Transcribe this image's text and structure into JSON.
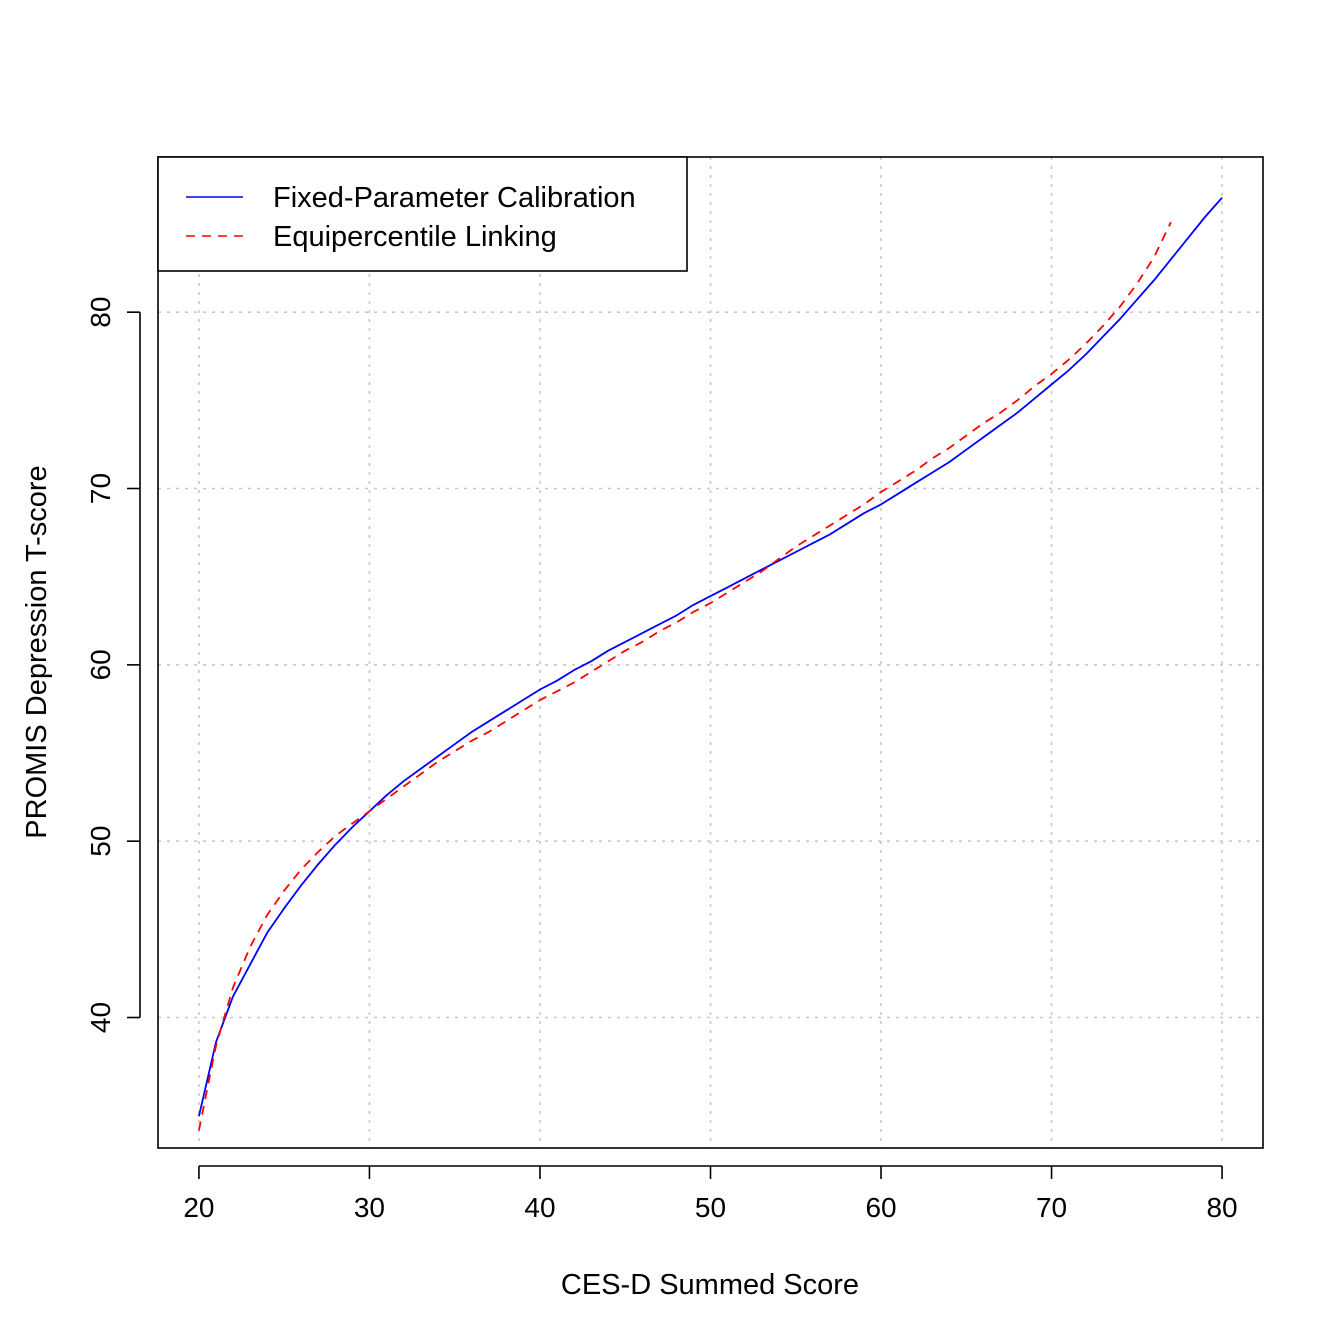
{
  "chart_data": {
    "type": "line",
    "title": "",
    "xlabel": "CES-D Summed Score",
    "ylabel": "PROMIS Depression T-score",
    "xlim": [
      17.6,
      82.4
    ],
    "ylim": [
      32.6,
      88.8
    ],
    "xticks": [
      20,
      30,
      40,
      50,
      60,
      70,
      80
    ],
    "yticks": [
      40,
      50,
      60,
      70,
      80
    ],
    "grid": true,
    "legend_position": "top-left",
    "series": [
      {
        "name": "Fixed-Parameter Calibration",
        "color": "#0000ff",
        "linestyle": "solid",
        "x": [
          20,
          21,
          22,
          23,
          24,
          25,
          26,
          27,
          28,
          29,
          30,
          31,
          32,
          33,
          34,
          35,
          36,
          37,
          38,
          39,
          40,
          41,
          42,
          43,
          44,
          45,
          46,
          47,
          48,
          49,
          50,
          51,
          52,
          53,
          54,
          55,
          56,
          57,
          58,
          59,
          60,
          61,
          62,
          63,
          64,
          65,
          66,
          67,
          68,
          69,
          70,
          71,
          72,
          73,
          74,
          75,
          76,
          77,
          78,
          79,
          80
        ],
        "y": [
          34.4,
          38.6,
          41.2,
          43.0,
          44.8,
          46.2,
          47.5,
          48.7,
          49.8,
          50.8,
          51.7,
          52.6,
          53.4,
          54.1,
          54.8,
          55.5,
          56.2,
          56.8,
          57.4,
          58.0,
          58.6,
          59.1,
          59.7,
          60.2,
          60.8,
          61.3,
          61.8,
          62.3,
          62.8,
          63.4,
          63.9,
          64.4,
          64.9,
          65.4,
          65.9,
          66.4,
          66.9,
          67.4,
          68.0,
          68.6,
          69.1,
          69.7,
          70.3,
          70.9,
          71.5,
          72.2,
          72.9,
          73.6,
          74.3,
          75.1,
          75.9,
          76.7,
          77.6,
          78.6,
          79.6,
          80.7,
          81.8,
          83.0,
          84.2,
          85.4,
          86.5
        ]
      },
      {
        "name": "Equipercentile Linking",
        "color": "#ff0000",
        "linestyle": "dashed",
        "x": [
          20,
          21,
          22,
          23,
          24,
          25,
          26,
          27,
          28,
          29,
          30,
          31,
          32,
          33,
          34,
          35,
          36,
          37,
          38,
          39,
          40,
          41,
          42,
          43,
          44,
          45,
          46,
          47,
          48,
          49,
          50,
          51,
          52,
          53,
          54,
          55,
          56,
          57,
          58,
          59,
          60,
          61,
          62,
          63,
          64,
          65,
          66,
          67,
          68,
          69,
          70,
          71,
          72,
          73,
          74,
          75,
          76,
          77
        ],
        "y": [
          33.6,
          38.4,
          41.7,
          44.0,
          45.8,
          47.2,
          48.4,
          49.4,
          50.3,
          51.0,
          51.7,
          52.4,
          53.1,
          53.8,
          54.5,
          55.1,
          55.7,
          56.2,
          56.8,
          57.4,
          58.0,
          58.5,
          59.0,
          59.6,
          60.2,
          60.8,
          61.3,
          61.9,
          62.4,
          63.0,
          63.5,
          64.1,
          64.7,
          65.3,
          66.0,
          66.7,
          67.3,
          67.9,
          68.5,
          69.1,
          69.8,
          70.4,
          71.0,
          71.7,
          72.3,
          73.0,
          73.7,
          74.3,
          75.0,
          75.8,
          76.5,
          77.3,
          78.2,
          79.2,
          80.3,
          81.6,
          83.1,
          85.1
        ]
      }
    ]
  }
}
